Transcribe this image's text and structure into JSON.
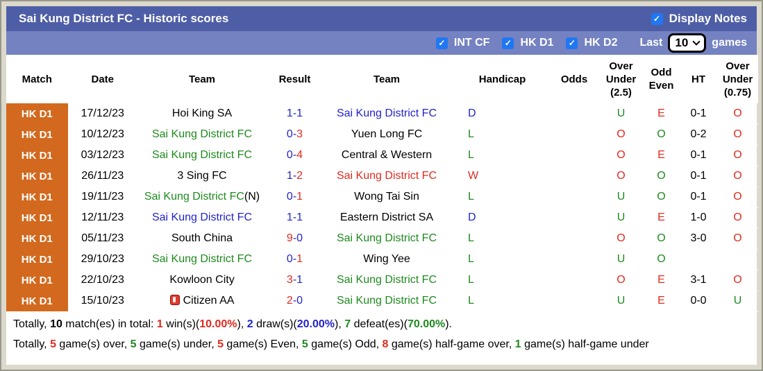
{
  "palette": {
    "red": "#e02a1e",
    "blue": "#2323c8",
    "green": "#1e8a1e",
    "black": "#000000",
    "white": "#ffffff"
  },
  "title_bar": {
    "title": "Sai Kung District FC - Historic scores",
    "display_notes": {
      "label": "Display Notes",
      "checked": true
    }
  },
  "filter_bar": {
    "checkboxes": [
      {
        "label": "INT CF",
        "checked": true
      },
      {
        "label": "HK D1",
        "checked": true
      },
      {
        "label": "HK D2",
        "checked": true
      }
    ],
    "last_label": "Last",
    "games_count": "10",
    "games_label": "games"
  },
  "table": {
    "columns": [
      "Match",
      "Date",
      "Team",
      "Result",
      "Team",
      "Handicap",
      "Odds",
      "Over Under (2.5)",
      "Odd Even",
      "HT",
      "Over Under (0.75)"
    ],
    "rows": [
      {
        "match": "HK D1",
        "date": "17/12/23",
        "home": "Hoi King SA",
        "home_color": "black",
        "home_suffix": "",
        "home_icon": false,
        "score_home": "1",
        "score_home_color": "blue",
        "score_away": "1",
        "score_away_color": "blue",
        "away": "Sai Kung District FC",
        "away_color": "blue",
        "handicap": "D",
        "handicap_color": "blue",
        "odds": "",
        "ou25": "U",
        "ou25_color": "green",
        "oe": "E",
        "oe_color": "red",
        "ht": "0-1",
        "ou075": "O",
        "ou075_color": "red"
      },
      {
        "match": "HK D1",
        "date": "10/12/23",
        "home": "Sai Kung District FC",
        "home_color": "green",
        "home_suffix": "",
        "home_icon": false,
        "score_home": "0",
        "score_home_color": "blue",
        "score_away": "3",
        "score_away_color": "red",
        "away": "Yuen Long FC",
        "away_color": "black",
        "handicap": "L",
        "handicap_color": "green",
        "odds": "",
        "ou25": "O",
        "ou25_color": "red",
        "oe": "O",
        "oe_color": "green",
        "ht": "0-2",
        "ou075": "O",
        "ou075_color": "red"
      },
      {
        "match": "HK D1",
        "date": "03/12/23",
        "home": "Sai Kung District FC",
        "home_color": "green",
        "home_suffix": "",
        "home_icon": false,
        "score_home": "0",
        "score_home_color": "blue",
        "score_away": "4",
        "score_away_color": "red",
        "away": "Central & Western",
        "away_color": "black",
        "handicap": "L",
        "handicap_color": "green",
        "odds": "",
        "ou25": "O",
        "ou25_color": "red",
        "oe": "E",
        "oe_color": "red",
        "ht": "0-1",
        "ou075": "O",
        "ou075_color": "red"
      },
      {
        "match": "HK D1",
        "date": "26/11/23",
        "home": "3 Sing FC",
        "home_color": "black",
        "home_suffix": "",
        "home_icon": false,
        "score_home": "1",
        "score_home_color": "blue",
        "score_away": "2",
        "score_away_color": "red",
        "away": "Sai Kung District FC",
        "away_color": "red",
        "handicap": "W",
        "handicap_color": "red",
        "odds": "",
        "ou25": "O",
        "ou25_color": "red",
        "oe": "O",
        "oe_color": "green",
        "ht": "0-1",
        "ou075": "O",
        "ou075_color": "red"
      },
      {
        "match": "HK D1",
        "date": "19/11/23",
        "home": "Sai Kung District FC",
        "home_color": "green",
        "home_suffix": "(N)",
        "home_icon": false,
        "score_home": "0",
        "score_home_color": "blue",
        "score_away": "1",
        "score_away_color": "red",
        "away": "Wong Tai Sin",
        "away_color": "black",
        "handicap": "L",
        "handicap_color": "green",
        "odds": "",
        "ou25": "U",
        "ou25_color": "green",
        "oe": "O",
        "oe_color": "green",
        "ht": "0-1",
        "ou075": "O",
        "ou075_color": "red"
      },
      {
        "match": "HK D1",
        "date": "12/11/23",
        "home": "Sai Kung District FC",
        "home_color": "blue",
        "home_suffix": "",
        "home_icon": false,
        "score_home": "1",
        "score_home_color": "blue",
        "score_away": "1",
        "score_away_color": "blue",
        "away": "Eastern District SA",
        "away_color": "black",
        "handicap": "D",
        "handicap_color": "blue",
        "odds": "",
        "ou25": "U",
        "ou25_color": "green",
        "oe": "E",
        "oe_color": "red",
        "ht": "1-0",
        "ou075": "O",
        "ou075_color": "red"
      },
      {
        "match": "HK D1",
        "date": "05/11/23",
        "home": "South China",
        "home_color": "black",
        "home_suffix": "",
        "home_icon": false,
        "score_home": "9",
        "score_home_color": "red",
        "score_away": "0",
        "score_away_color": "blue",
        "away": "Sai Kung District FC",
        "away_color": "green",
        "handicap": "L",
        "handicap_color": "green",
        "odds": "",
        "ou25": "O",
        "ou25_color": "red",
        "oe": "O",
        "oe_color": "green",
        "ht": "3-0",
        "ou075": "O",
        "ou075_color": "red"
      },
      {
        "match": "HK D1",
        "date": "29/10/23",
        "home": "Sai Kung District FC",
        "home_color": "green",
        "home_suffix": "",
        "home_icon": false,
        "score_home": "0",
        "score_home_color": "blue",
        "score_away": "1",
        "score_away_color": "red",
        "away": "Wing Yee",
        "away_color": "black",
        "handicap": "L",
        "handicap_color": "green",
        "odds": "",
        "ou25": "U",
        "ou25_color": "green",
        "oe": "O",
        "oe_color": "green",
        "ht": "",
        "ou075": "",
        "ou075_color": "black"
      },
      {
        "match": "HK D1",
        "date": "22/10/23",
        "home": "Kowloon City",
        "home_color": "black",
        "home_suffix": "",
        "home_icon": false,
        "score_home": "3",
        "score_home_color": "red",
        "score_away": "1",
        "score_away_color": "blue",
        "away": "Sai Kung District FC",
        "away_color": "green",
        "handicap": "L",
        "handicap_color": "green",
        "odds": "",
        "ou25": "O",
        "ou25_color": "red",
        "oe": "E",
        "oe_color": "red",
        "ht": "3-1",
        "ou075": "O",
        "ou075_color": "red"
      },
      {
        "match": "HK D1",
        "date": "15/10/23",
        "home": "Citizen AA",
        "home_color": "black",
        "home_suffix": "",
        "home_icon": true,
        "score_home": "2",
        "score_home_color": "red",
        "score_away": "0",
        "score_away_color": "blue",
        "away": "Sai Kung District FC",
        "away_color": "green",
        "handicap": "L",
        "handicap_color": "green",
        "odds": "",
        "ou25": "U",
        "ou25_color": "green",
        "oe": "E",
        "oe_color": "red",
        "ht": "0-0",
        "ou075": "U",
        "ou075_color": "green"
      }
    ]
  },
  "summary": {
    "line1": [
      {
        "t": "Totally, ",
        "c": "black",
        "b": false
      },
      {
        "t": "10",
        "c": "black",
        "b": true
      },
      {
        "t": " match(es) in total: ",
        "c": "black",
        "b": false
      },
      {
        "t": "1",
        "c": "red",
        "b": true
      },
      {
        "t": " win(s)(",
        "c": "black",
        "b": false
      },
      {
        "t": "10.00%",
        "c": "red",
        "b": true
      },
      {
        "t": "), ",
        "c": "black",
        "b": false
      },
      {
        "t": "2",
        "c": "blue",
        "b": true
      },
      {
        "t": " draw(s)(",
        "c": "black",
        "b": false
      },
      {
        "t": "20.00%",
        "c": "blue",
        "b": true
      },
      {
        "t": "), ",
        "c": "black",
        "b": false
      },
      {
        "t": "7",
        "c": "green",
        "b": true
      },
      {
        "t": " defeat(es)(",
        "c": "black",
        "b": false
      },
      {
        "t": "70.00%",
        "c": "green",
        "b": true
      },
      {
        "t": ").",
        "c": "black",
        "b": false
      }
    ],
    "line2": [
      {
        "t": "Totally, ",
        "c": "black",
        "b": false
      },
      {
        "t": "5",
        "c": "red",
        "b": true
      },
      {
        "t": " game(s) over, ",
        "c": "black",
        "b": false
      },
      {
        "t": "5",
        "c": "green",
        "b": true
      },
      {
        "t": " game(s) under, ",
        "c": "black",
        "b": false
      },
      {
        "t": "5",
        "c": "red",
        "b": true
      },
      {
        "t": " game(s) Even, ",
        "c": "black",
        "b": false
      },
      {
        "t": "5",
        "c": "green",
        "b": true
      },
      {
        "t": " game(s) Odd, ",
        "c": "black",
        "b": false
      },
      {
        "t": "8",
        "c": "red",
        "b": true
      },
      {
        "t": " game(s) half-game over, ",
        "c": "black",
        "b": false
      },
      {
        "t": "1",
        "c": "green",
        "b": true
      },
      {
        "t": " game(s) half-game under",
        "c": "black",
        "b": false
      }
    ]
  }
}
